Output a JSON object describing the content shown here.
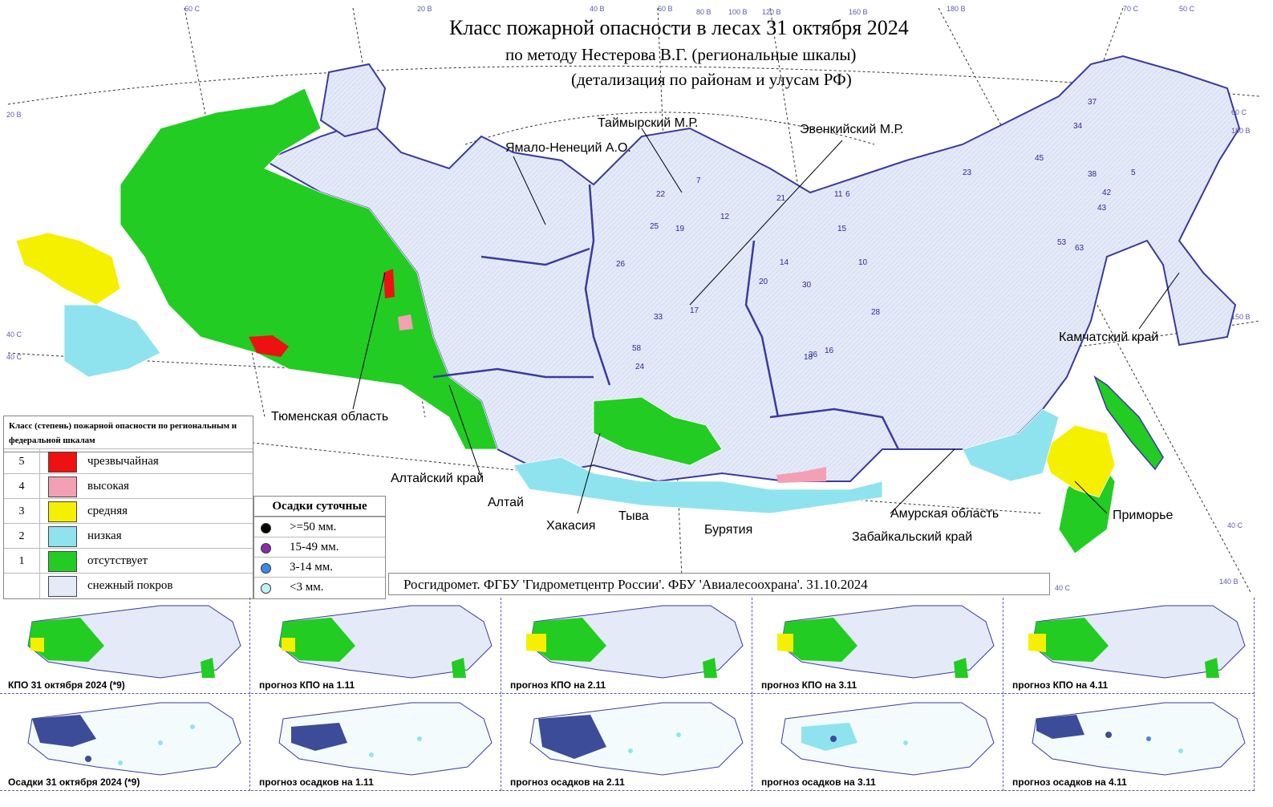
{
  "title": {
    "line1": "Класс пожарной опасности в лесах 31  октября 2024",
    "line2": "по методу Нестерова В.Г. (региональные шкалы)",
    "line3": "(детализация по районам и улусам РФ)"
  },
  "region_labels": [
    "Таймырский М.Р.",
    "Ямало-Ненеций А.О.",
    "Эвенкийский М.Р.",
    "Камчатский край",
    "Тюменская область",
    "Алтайский край",
    "Алтай",
    "Хакасия",
    "Тыва",
    "Бурятия",
    "Амурская область",
    "Забайкальский край",
    "Приморье"
  ],
  "legend": {
    "header": "Класс (степень) пожарной опасности по региональным и федеральной шкалам",
    "rows": [
      {
        "num": "5",
        "label": "чрезвычайная",
        "color": "#ee1111"
      },
      {
        "num": "4",
        "label": "высокая",
        "color": "#f4a0b4"
      },
      {
        "num": "3",
        "label": "средняя",
        "color": "#f5f000"
      },
      {
        "num": "2",
        "label": "низкая",
        "color": "#8fe3ee"
      },
      {
        "num": "1",
        "label": "отсутствует",
        "color": "#22cc22"
      },
      {
        "num": "",
        "label": "снежный покров",
        "color": "#e4eaf8"
      }
    ]
  },
  "precip_legend": {
    "header": "Осадки суточные",
    "rows": [
      {
        "label": ">=50 мм.",
        "color": "#000000"
      },
      {
        "label": "15-49 мм.",
        "color": "#8a2aa8"
      },
      {
        "label": "3-14 мм.",
        "color": "#3a8ae8"
      },
      {
        "label": "<3 мм.",
        "color": "#bff2f8"
      }
    ]
  },
  "credit": "Росгидромет. ФГБУ 'Гидрометцентр России'. ФБУ 'Авиалесоохрана'. 31.10.2024",
  "coords": [
    "60 С",
    "20 В",
    "40 В",
    "60 В",
    "80 В",
    "100 В",
    "120 В",
    "160 В",
    "180 В",
    "70 С",
    "60 С",
    "180 В",
    "20 В",
    "40 С",
    "40 С",
    "140 В",
    "40 С",
    "150 В",
    "40 С",
    "50 С"
  ],
  "thumbnails_fire": [
    "КПО 31  октября 2024 (*9)",
    "прогноз КПО на 1.11",
    "прогноз КПО на 2.11",
    "прогноз КПО на 3.11",
    "прогноз КПО на 4.11"
  ],
  "thumbnails_precip": [
    "Осадки 31  октября 2024 (*9)",
    "прогноз осадков на 1.11",
    "прогноз осадков на 2.11",
    "прогноз осадков на 3.11",
    "прогноз осадков на 4.11"
  ],
  "district_numbers": [
    "22",
    "19",
    "25",
    "33",
    "17",
    "12",
    "7",
    "14",
    "20",
    "30",
    "26",
    "23",
    "11",
    "6",
    "10",
    "5",
    "15",
    "21",
    "18",
    "16",
    "28",
    "24",
    "36",
    "37",
    "34",
    "43",
    "38",
    "42",
    "45",
    "53",
    "63",
    "58"
  ]
}
